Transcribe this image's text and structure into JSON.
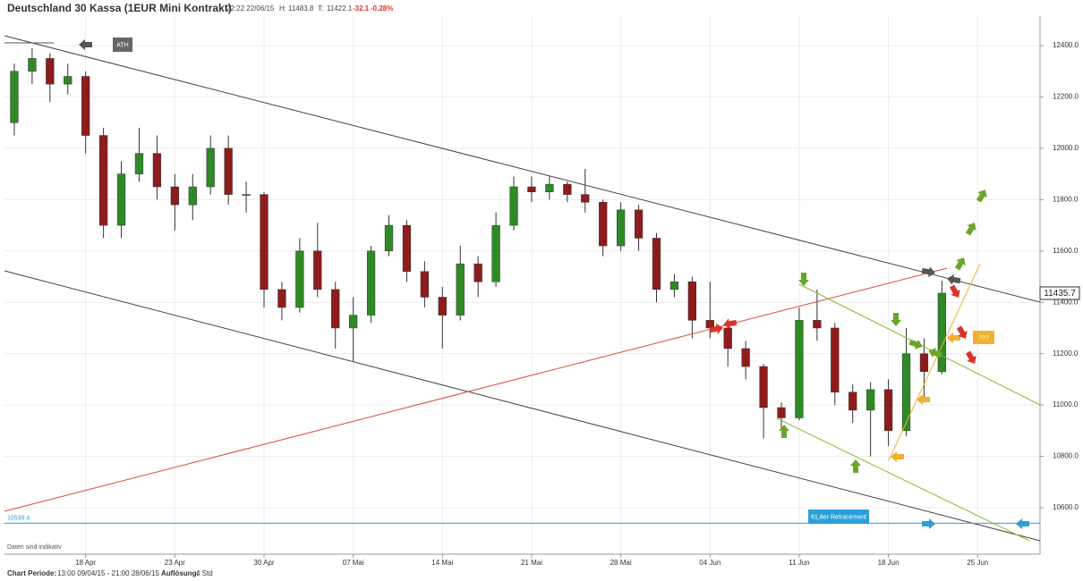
{
  "chart_data": {
    "type": "candlestick",
    "title": "Deutschland 30 Kassa (1EUR Mini Kontrakt)",
    "timestamp": "22:22 22/06/15",
    "high_label": "H:",
    "day_high": 11483.8,
    "low_label": "T:",
    "day_low": 11422.1,
    "change": -32.1,
    "change_pct": "-0.28%",
    "note": "Daten sind indikativ",
    "period_label": "Chart Periode:",
    "period": "13:00 09/04/15 - 21:00 28/06/15",
    "resolution_label": "Auflösung:",
    "resolution": "4 Std",
    "annotations": {
      "ath": "ATH",
      "question": "???",
      "retracement": "61,8er Retracement"
    },
    "level": 10539.4,
    "last_price": 11435.7,
    "up_color": "#2f8a26",
    "down_color": "#8e1c1c",
    "grid": true,
    "categories": [
      null,
      null,
      null,
      null,
      "18 Apr",
      null,
      null,
      null,
      null,
      "23 Apr",
      null,
      null,
      null,
      null,
      "30 Apr",
      null,
      null,
      null,
      null,
      "07 Mai",
      null,
      null,
      null,
      null,
      "14 Mai",
      null,
      null,
      null,
      null,
      "21 Mai",
      null,
      null,
      null,
      null,
      "28 Mai",
      null,
      null,
      null,
      null,
      "04 Jun",
      null,
      null,
      null,
      null,
      "11 Jun",
      null,
      null,
      null,
      null,
      "18 Jun",
      null,
      null,
      null,
      null,
      "25 Jun",
      null,
      null,
      null
    ],
    "open": [
      12100,
      12300,
      12350,
      12250,
      12280,
      12050,
      11700,
      11900,
      11980,
      11850,
      11780,
      11850,
      12000,
      11820,
      11820,
      11450,
      11380,
      11600,
      11450,
      11300,
      11350,
      11600,
      11700,
      11520,
      11420,
      11350,
      11550,
      11480,
      11700,
      11850,
      11830,
      11860,
      11820,
      11790,
      11620,
      11760,
      11650,
      11450,
      11480,
      11330,
      11300,
      11220,
      11150,
      10990,
      10950,
      11330,
      11300,
      11050,
      10980,
      11060,
      10900,
      11200,
      11130,
      null,
      null,
      null,
      null,
      null
    ],
    "high": [
      12330,
      12390,
      12370,
      12330,
      12300,
      12080,
      11950,
      12080,
      12050,
      11900,
      11900,
      12050,
      12050,
      11870,
      11830,
      11480,
      11650,
      11710,
      11480,
      11420,
      11620,
      11740,
      11720,
      11560,
      11460,
      11620,
      11580,
      11750,
      11890,
      11890,
      11890,
      11870,
      11920,
      11800,
      11790,
      11780,
      11670,
      11510,
      11500,
      11480,
      11320,
      11250,
      11160,
      11010,
      11380,
      11450,
      11320,
      11080,
      11090,
      11100,
      11300,
      11260,
      11483.8,
      null,
      null,
      null,
      null,
      null
    ],
    "low": [
      12050,
      12250,
      12180,
      12210,
      11980,
      11650,
      11650,
      11870,
      11800,
      11680,
      11720,
      11820,
      11780,
      11750,
      11380,
      11330,
      11360,
      11420,
      11220,
      11170,
      11320,
      11580,
      11480,
      11380,
      11220,
      11330,
      11420,
      11460,
      11680,
      11790,
      11800,
      11790,
      11750,
      11580,
      11600,
      11600,
      11400,
      11420,
      11260,
      11260,
      11150,
      11100,
      10870,
      10900,
      10940,
      11250,
      11000,
      10930,
      10800,
      10840,
      10880,
      11010,
      11120,
      null,
      null,
      null,
      null,
      null
    ],
    "close": [
      12300,
      12350,
      12250,
      12280,
      12050,
      11700,
      11900,
      11980,
      11850,
      11780,
      11850,
      12000,
      11820,
      11820,
      11450,
      11380,
      11600,
      11450,
      11300,
      11350,
      11600,
      11700,
      11520,
      11420,
      11350,
      11550,
      11480,
      11700,
      11850,
      11830,
      11860,
      11820,
      11790,
      11620,
      11760,
      11650,
      11450,
      11480,
      11330,
      11300,
      11220,
      11150,
      10990,
      10950,
      11330,
      11300,
      11050,
      10980,
      11060,
      10900,
      11200,
      11130,
      11435.7,
      null,
      null,
      null,
      null,
      null
    ],
    "ylim": [
      10419,
      12515
    ],
    "yticks": [
      {
        "value": 10600,
        "label": "10600.0"
      },
      {
        "value": 10800,
        "label": "10800.0"
      },
      {
        "value": 11000,
        "label": "11000.0"
      },
      {
        "value": 11200,
        "label": "11200.0"
      },
      {
        "value": 11400,
        "label": "11400.0"
      },
      {
        "value": 11600,
        "label": "11600.0"
      },
      {
        "value": 11800,
        "label": "11800.0"
      },
      {
        "value": 12000,
        "label": "12000.0"
      },
      {
        "value": 12200,
        "label": "12200.0"
      },
      {
        "value": 12400,
        "label": "12400.0"
      }
    ]
  }
}
